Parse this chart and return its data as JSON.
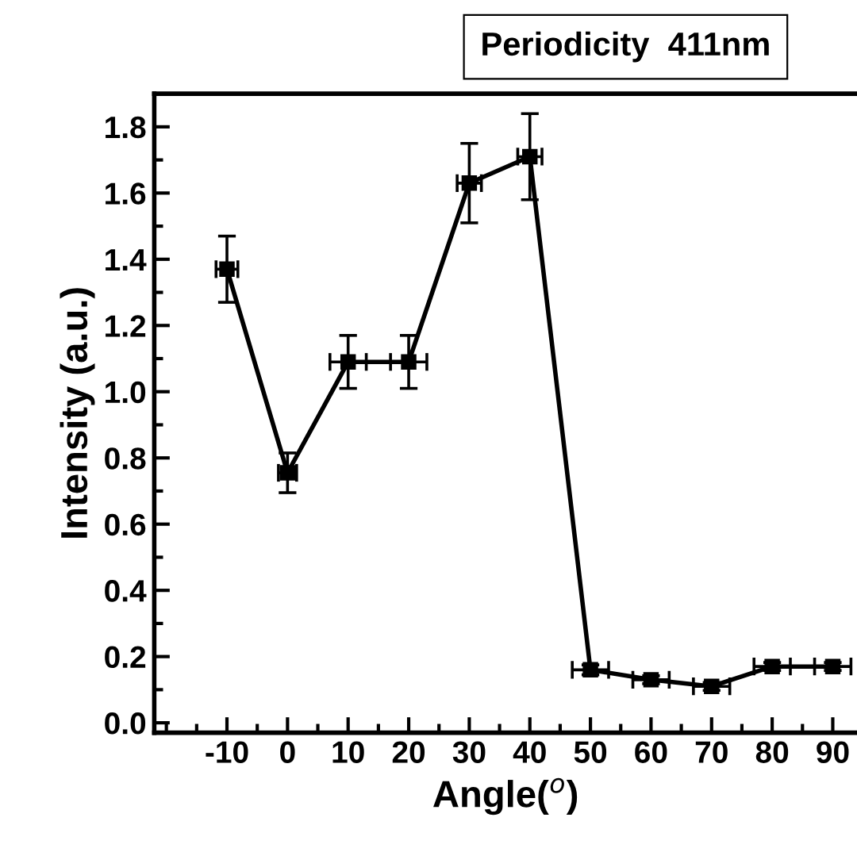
{
  "chart_data": {
    "type": "line",
    "title": "Periodicity  411nm",
    "xlabel": "Angle($^{o}$)",
    "ylabel": "Intensity (a.u.)",
    "x": [
      -10,
      0,
      10,
      20,
      30,
      40,
      50,
      60,
      70,
      80,
      90
    ],
    "series": [
      {
        "color": "#000000",
        "values": [
          1.37,
          0.755,
          1.09,
          1.09,
          1.63,
          1.71,
          0.16,
          0.13,
          0.11,
          0.17,
          0.17
        ],
        "errors": [
          0.1,
          0.06,
          0.08,
          0.08,
          0.12,
          0.13,
          0.015,
          0.012,
          0.012,
          0.012,
          0.012
        ],
        "xerrors": [
          1.8,
          1.5,
          3,
          3,
          2,
          2,
          3,
          3,
          3,
          3,
          3
        ]
      }
    ],
    "xlim": [
      -22,
      94
    ],
    "ylim": [
      -0.03,
      1.9
    ],
    "xticks": [
      -10,
      0,
      10,
      20,
      30,
      40,
      50,
      60,
      70,
      80,
      90
    ],
    "yticks": [
      {
        "value": 0,
        "label": "0.0"
      },
      0.2,
      0.4,
      0.6,
      0.8,
      {
        "value": 1,
        "label": "1.0"
      },
      1.2,
      1.4,
      1.6,
      1.8
    ],
    "marker": "square",
    "line_style": "solid",
    "grid": false,
    "legend": false
  }
}
